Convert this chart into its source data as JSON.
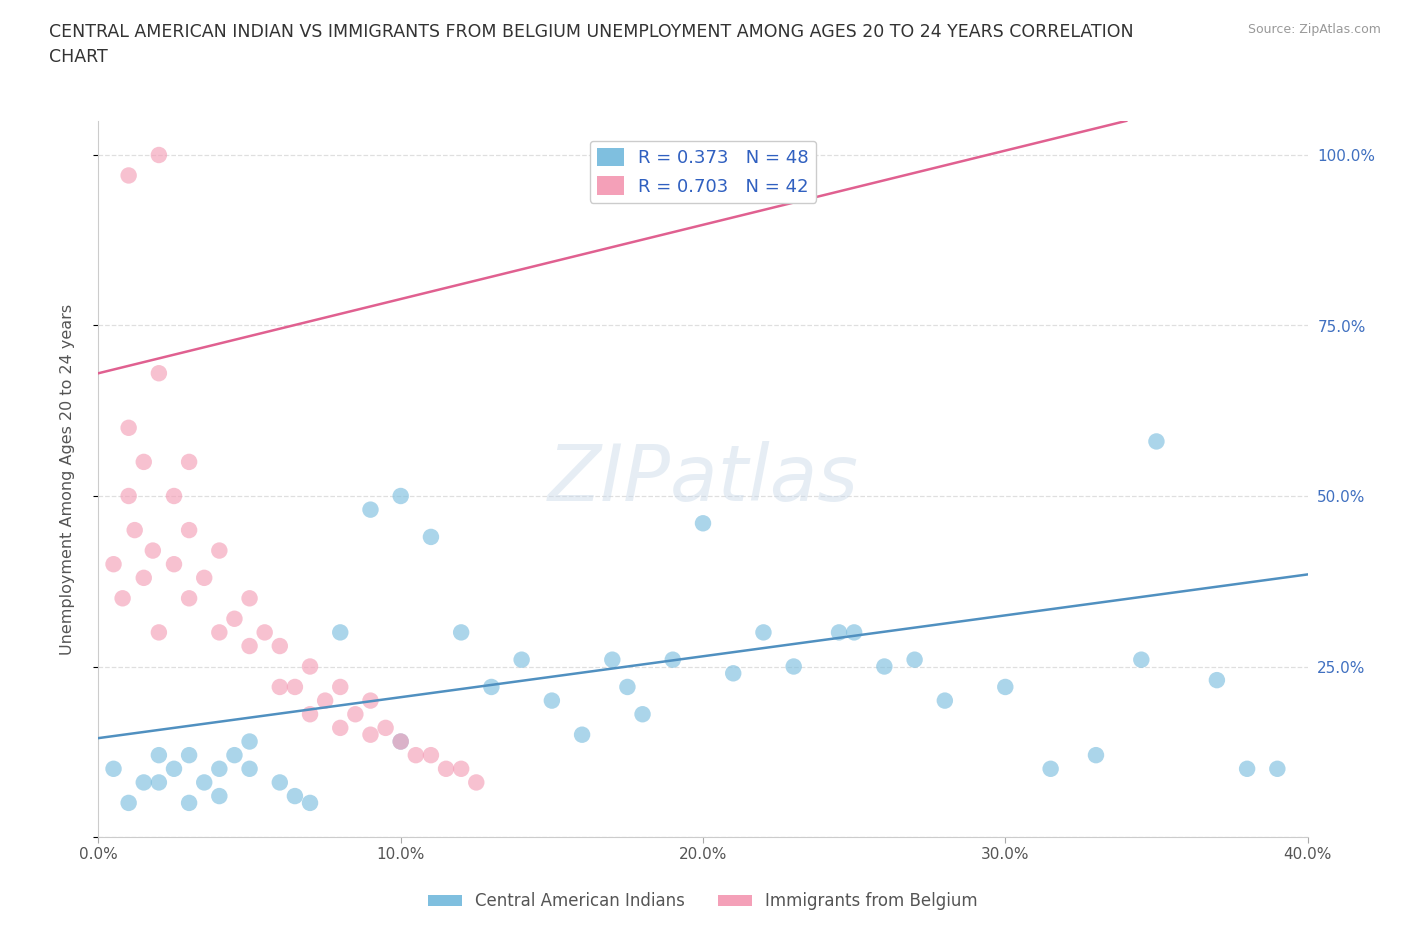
{
  "title": "CENTRAL AMERICAN INDIAN VS IMMIGRANTS FROM BELGIUM UNEMPLOYMENT AMONG AGES 20 TO 24 YEARS CORRELATION\nCHART",
  "source_text": "Source: ZipAtlas.com",
  "ylabel": "Unemployment Among Ages 20 to 24 years",
  "xlim": [
    0.0,
    0.4
  ],
  "ylim": [
    0.0,
    1.05
  ],
  "xticks": [
    0.0,
    0.1,
    0.2,
    0.3,
    0.4
  ],
  "xticklabels": [
    "0.0%",
    "10.0%",
    "20.0%",
    "30.0%",
    "40.0%"
  ],
  "ytick_positions": [
    0.0,
    0.25,
    0.5,
    0.75,
    1.0
  ],
  "yticklabels": [
    "",
    "25.0%",
    "50.0%",
    "75.0%",
    "100.0%"
  ],
  "blue_color": "#7fbfdf",
  "pink_color": "#f4a0b8",
  "blue_line_color": "#5090c0",
  "pink_line_color": "#e06090",
  "legend_text_color": "#3060c0",
  "watermark": "ZIPatlas",
  "blue_scatter_x": [
    0.005,
    0.01,
    0.015,
    0.02,
    0.02,
    0.025,
    0.03,
    0.03,
    0.035,
    0.04,
    0.04,
    0.045,
    0.05,
    0.05,
    0.06,
    0.065,
    0.07,
    0.08,
    0.09,
    0.1,
    0.1,
    0.11,
    0.12,
    0.13,
    0.14,
    0.15,
    0.16,
    0.17,
    0.175,
    0.18,
    0.19,
    0.2,
    0.21,
    0.22,
    0.23,
    0.245,
    0.26,
    0.28,
    0.3,
    0.33,
    0.35,
    0.37,
    0.38,
    0.39,
    0.25,
    0.27,
    0.315,
    0.345
  ],
  "blue_scatter_y": [
    0.1,
    0.05,
    0.08,
    0.12,
    0.08,
    0.1,
    0.05,
    0.12,
    0.08,
    0.1,
    0.06,
    0.12,
    0.1,
    0.14,
    0.08,
    0.06,
    0.05,
    0.3,
    0.48,
    0.14,
    0.5,
    0.44,
    0.3,
    0.22,
    0.26,
    0.2,
    0.15,
    0.26,
    0.22,
    0.18,
    0.26,
    0.46,
    0.24,
    0.3,
    0.25,
    0.3,
    0.25,
    0.2,
    0.22,
    0.12,
    0.58,
    0.23,
    0.1,
    0.1,
    0.3,
    0.26,
    0.1,
    0.26
  ],
  "pink_scatter_x": [
    0.005,
    0.008,
    0.01,
    0.01,
    0.012,
    0.015,
    0.015,
    0.018,
    0.02,
    0.02,
    0.025,
    0.025,
    0.03,
    0.03,
    0.03,
    0.035,
    0.04,
    0.04,
    0.045,
    0.05,
    0.05,
    0.055,
    0.06,
    0.06,
    0.065,
    0.07,
    0.07,
    0.075,
    0.08,
    0.08,
    0.085,
    0.09,
    0.09,
    0.095,
    0.1,
    0.105,
    0.11,
    0.115,
    0.12,
    0.125,
    0.01,
    0.02
  ],
  "pink_scatter_y": [
    0.4,
    0.35,
    0.5,
    0.6,
    0.45,
    0.38,
    0.55,
    0.42,
    0.3,
    0.68,
    0.4,
    0.5,
    0.35,
    0.45,
    0.55,
    0.38,
    0.3,
    0.42,
    0.32,
    0.35,
    0.28,
    0.3,
    0.22,
    0.28,
    0.22,
    0.18,
    0.25,
    0.2,
    0.16,
    0.22,
    0.18,
    0.15,
    0.2,
    0.16,
    0.14,
    0.12,
    0.12,
    0.1,
    0.1,
    0.08,
    0.97,
    1.0
  ],
  "blue_line_x0": 0.0,
  "blue_line_y0": 0.145,
  "blue_line_x1": 0.4,
  "blue_line_y1": 0.385,
  "pink_line_x0": 0.0,
  "pink_line_y0": 0.68,
  "pink_line_x1": 0.34,
  "pink_line_y1": 1.05,
  "grid_color": "#d8d8d8",
  "bg_color": "#ffffff"
}
